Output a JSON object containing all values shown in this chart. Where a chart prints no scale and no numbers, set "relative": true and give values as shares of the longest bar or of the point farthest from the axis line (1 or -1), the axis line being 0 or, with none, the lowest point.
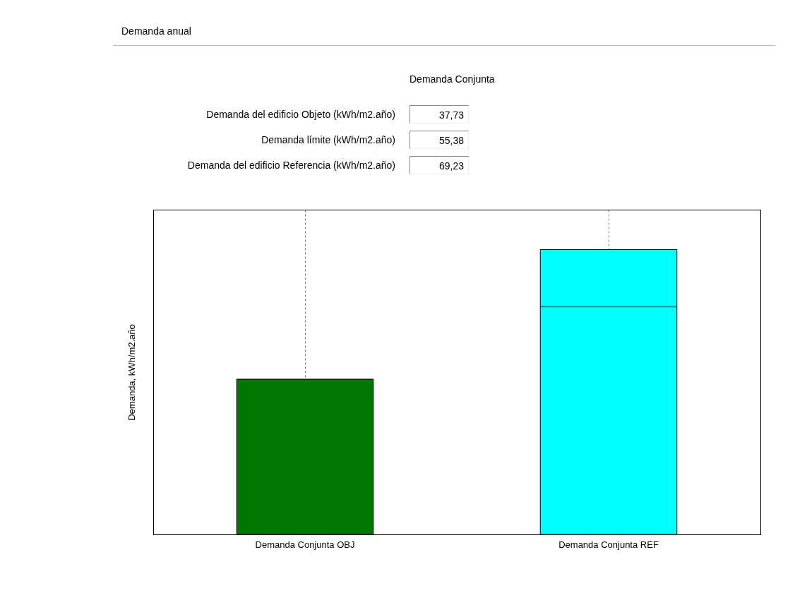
{
  "chart_data": [
    {
      "type": "other",
      "title": "Demanda anual",
      "subtitle": "Demanda Conjunta",
      "annotations": [
        "Demanda del edificio Objeto (kWh/m2.año)",
        "37,73",
        "Demanda límite (kWh/m2.año)",
        "55,38",
        "Demanda del edificio Referencia (kWh/m2.año)",
        "69,23"
      ]
    },
    {
      "type": "bar",
      "relative": true,
      "categories": [
        "Demanda Conjunta OBJ",
        "Demanda Conjunta REF"
      ],
      "values": [
        0.545,
        1
      ],
      "colors": [
        "#007800",
        "#00ffff"
      ],
      "ylabel": "Demanda, kWh/m2.año",
      "ref_lines": [
        {
          "axis": "y",
          "value": 0.8,
          "color": "#005a5a"
        }
      ],
      "grid": "x"
    }
  ]
}
